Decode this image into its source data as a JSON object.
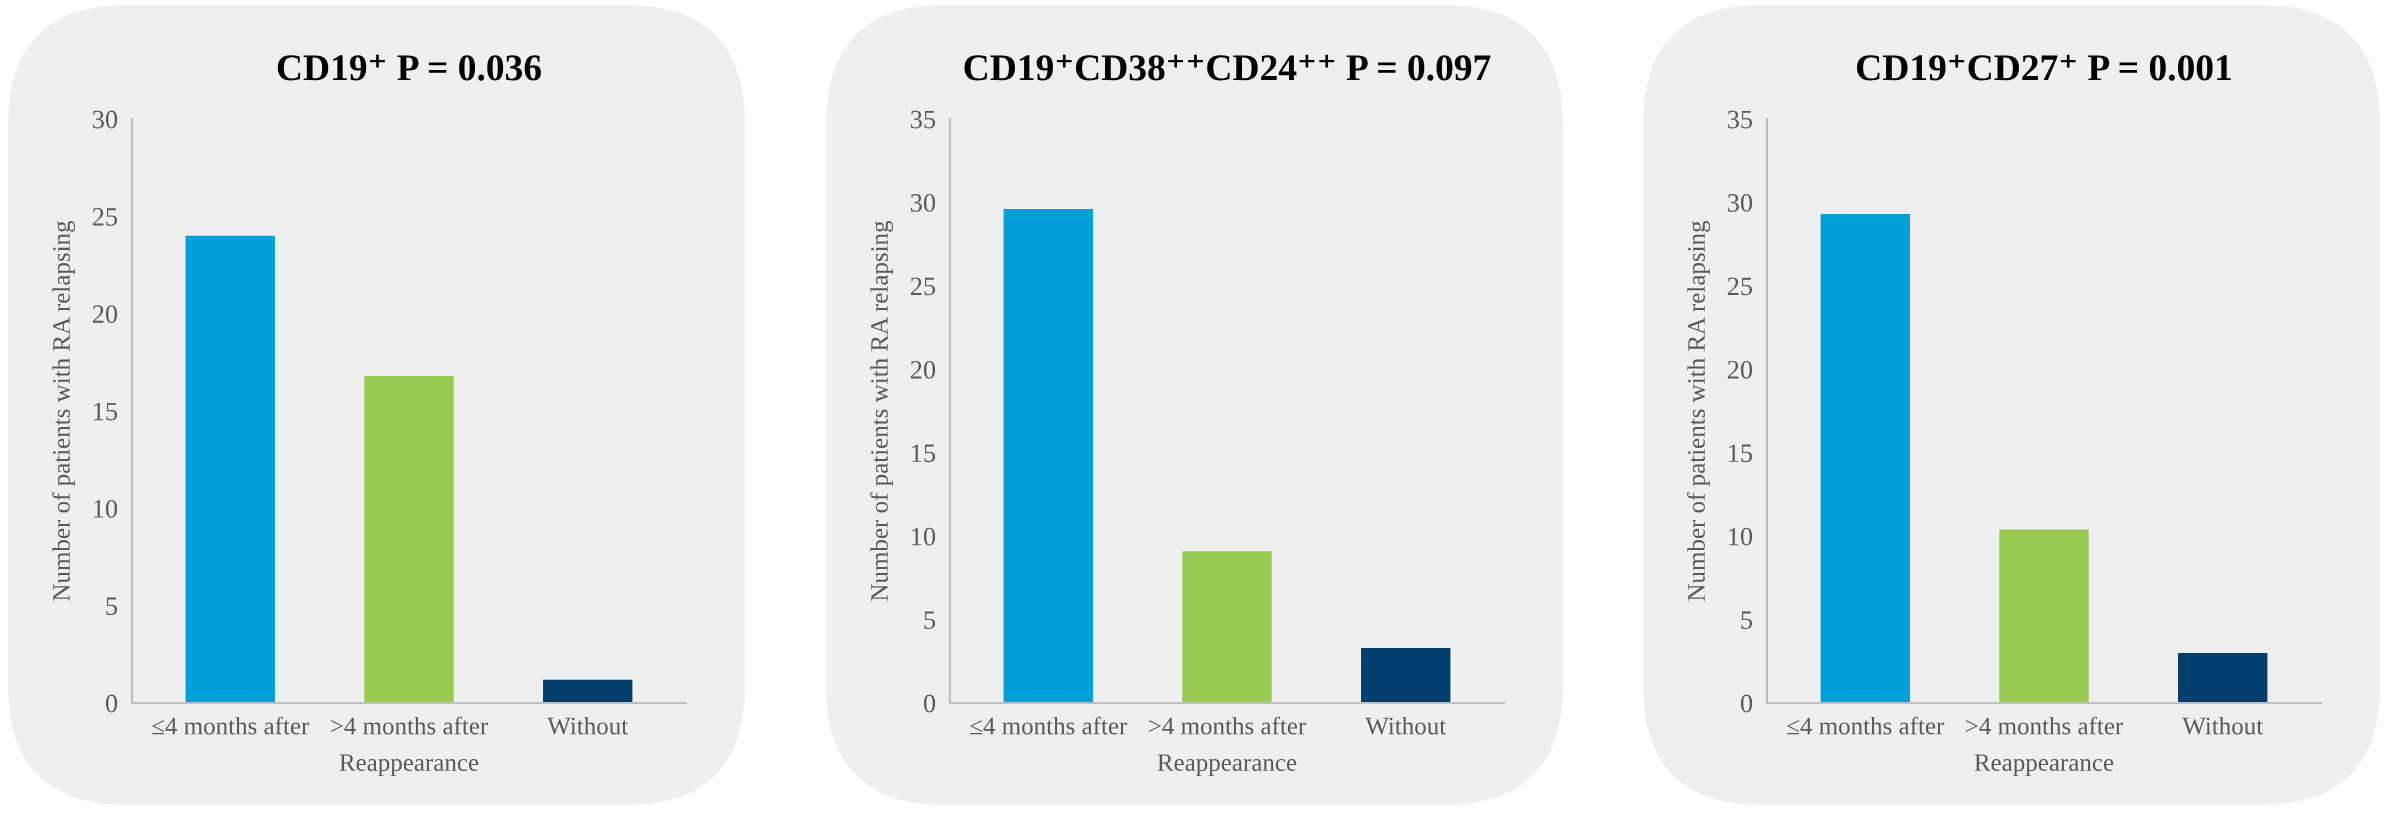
{
  "chart_data": [
    {
      "type": "bar",
      "title": "CD19⁺ P = 0.036",
      "xlabel": "Reappearance",
      "ylabel": "Number of patients with RA relapsing",
      "categories": [
        "≤4 months after",
        ">4 months after",
        "Without"
      ],
      "values": [
        24.0,
        16.8,
        1.2
      ],
      "colors": [
        "#009fda",
        "#99cb50",
        "#003f6b"
      ],
      "ylim": [
        0,
        30
      ],
      "yticks": [
        0,
        5,
        10,
        15,
        20,
        25,
        30
      ]
    },
    {
      "type": "bar",
      "title": "CD19⁺CD38⁺⁺CD24⁺⁺ P = 0.097",
      "xlabel": "Reappearance",
      "ylabel": "Number of patients with RA relapsing",
      "categories": [
        "≤4 months after",
        ">4 months after",
        "Without"
      ],
      "values": [
        29.6,
        9.1,
        3.3
      ],
      "colors": [
        "#009fda",
        "#99cb50",
        "#003f6b"
      ],
      "ylim": [
        0,
        35
      ],
      "yticks": [
        0,
        5,
        10,
        15,
        20,
        25,
        30,
        35
      ]
    },
    {
      "type": "bar",
      "title": "CD19⁺CD27⁺ P = 0.001",
      "xlabel": "Reappearance",
      "ylabel": "Number of patients with RA relapsing",
      "categories": [
        "≤4 months after",
        ">4 months after",
        "Without"
      ],
      "values": [
        29.3,
        10.4,
        3.0
      ],
      "colors": [
        "#009fda",
        "#99cb50",
        "#003f6b"
      ],
      "ylim": [
        0,
        35
      ],
      "yticks": [
        0,
        5,
        10,
        15,
        20,
        25,
        30,
        35
      ]
    }
  ]
}
